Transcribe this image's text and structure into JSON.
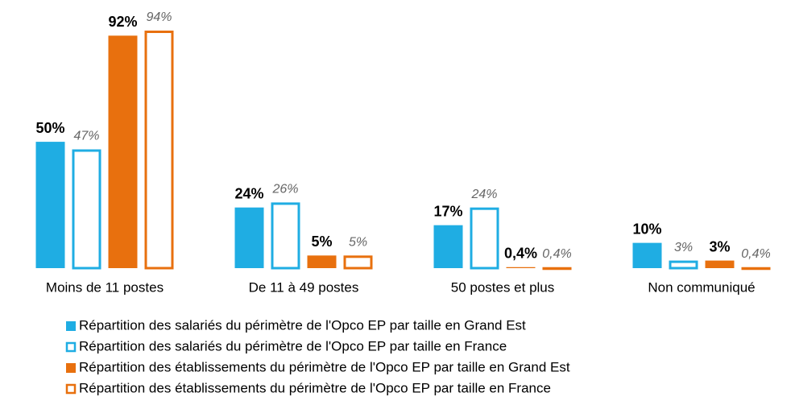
{
  "chart_data": {
    "type": "bar",
    "categories": [
      "Moins de 11 postes",
      "De 11 à 49 postes",
      "50 postes et plus",
      "Non communiqué"
    ],
    "series": [
      {
        "name": "Répartition des salariés du périmètre de l'Opco EP par taille en Grand Est",
        "color": "#1fade3",
        "filled": true,
        "values": [
          50,
          24,
          17,
          10
        ],
        "value_labels": [
          "50%",
          "24%",
          "17%",
          "10%"
        ]
      },
      {
        "name": "Répartition des salariés du périmètre de l'Opco EP par taille en France",
        "color": "#1fade3",
        "filled": false,
        "values": [
          47,
          26,
          24,
          3
        ],
        "value_labels": [
          "47%",
          "26%",
          "24%",
          "3%"
        ]
      },
      {
        "name": "Répartition des établissements du périmètre de l'Opco EP par taille en Grand Est",
        "color": "#e8700e",
        "filled": true,
        "values": [
          92,
          5,
          0.4,
          3
        ],
        "value_labels": [
          "92%",
          "5%",
          "0,4%",
          "3%"
        ]
      },
      {
        "name": "Répartition des établissements du périmètre de l'Opco EP par taille en France",
        "color": "#e8700e",
        "filled": false,
        "values": [
          94,
          5,
          0.4,
          0.4
        ],
        "value_labels": [
          "94%",
          "5%",
          "0,4%",
          "0,4%"
        ]
      }
    ]
  }
}
